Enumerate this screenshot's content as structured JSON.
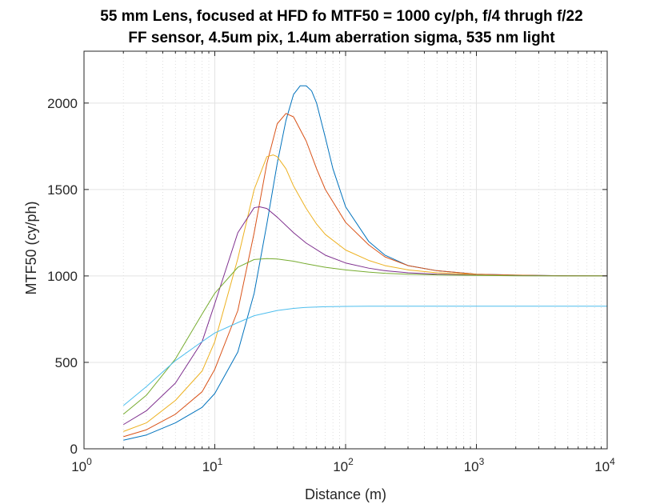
{
  "chart_data": {
    "type": "line",
    "title": "55 mm Lens, focused at HFD fo MTF50 = 1000 cy/ph, f/4 thrugh f/22",
    "subtitle": "FF sensor, 4.5um pix, 1.4um aberration sigma, 535 nm light",
    "xlabel": "Distance (m)",
    "ylabel": "MTF50 (cy/ph)",
    "x_scale": "log",
    "xlim": [
      1,
      10000
    ],
    "ylim": [
      0,
      2300
    ],
    "x_ticks": [
      {
        "base": "10",
        "exp": "0",
        "value": 1
      },
      {
        "base": "10",
        "exp": "1",
        "value": 10
      },
      {
        "base": "10",
        "exp": "2",
        "value": 100
      },
      {
        "base": "10",
        "exp": "3",
        "value": 1000
      },
      {
        "base": "10",
        "exp": "4",
        "value": 10000
      }
    ],
    "y_ticks": [
      "0",
      "500",
      "1000",
      "1500",
      "2000"
    ],
    "grid": true,
    "series": [
      {
        "color": "#0072BD",
        "x": [
          2,
          3,
          5,
          8,
          10,
          15,
          20,
          25,
          30,
          35,
          40,
          45,
          50,
          55,
          60,
          70,
          80,
          100,
          150,
          200,
          300,
          500,
          1000,
          2000,
          5000,
          10000
        ],
        "y": [
          50,
          80,
          150,
          240,
          320,
          560,
          900,
          1300,
          1650,
          1900,
          2050,
          2100,
          2100,
          2070,
          2000,
          1800,
          1620,
          1400,
          1200,
          1120,
          1060,
          1030,
          1010,
          1005,
          1001,
          1000
        ]
      },
      {
        "color": "#D95319",
        "x": [
          2,
          3,
          5,
          8,
          10,
          15,
          20,
          25,
          30,
          35,
          40,
          50,
          60,
          70,
          100,
          150,
          200,
          300,
          500,
          1000,
          2000,
          5000,
          10000
        ],
        "y": [
          70,
          110,
          200,
          330,
          460,
          800,
          1250,
          1650,
          1880,
          1940,
          1920,
          1780,
          1620,
          1500,
          1310,
          1180,
          1110,
          1060,
          1030,
          1010,
          1005,
          1001,
          1000
        ]
      },
      {
        "color": "#EDB120",
        "x": [
          2,
          3,
          5,
          8,
          10,
          15,
          20,
          25,
          28,
          30,
          35,
          40,
          50,
          60,
          70,
          100,
          150,
          200,
          300,
          500,
          1000,
          2000,
          5000,
          10000
        ],
        "y": [
          100,
          150,
          280,
          450,
          620,
          1100,
          1500,
          1690,
          1700,
          1690,
          1620,
          1520,
          1390,
          1300,
          1240,
          1150,
          1090,
          1060,
          1035,
          1018,
          1008,
          1003,
          1001,
          1000
        ]
      },
      {
        "color": "#7E2F8E",
        "x": [
          2,
          3,
          5,
          8,
          10,
          15,
          20,
          22,
          25,
          30,
          40,
          50,
          70,
          100,
          150,
          200,
          300,
          500,
          1000,
          2000,
          5000,
          10000
        ],
        "y": [
          140,
          220,
          380,
          620,
          840,
          1250,
          1395,
          1400,
          1390,
          1340,
          1250,
          1190,
          1120,
          1075,
          1045,
          1030,
          1018,
          1010,
          1005,
          1002,
          1001,
          1000
        ]
      },
      {
        "color": "#77AC30",
        "x": [
          2,
          3,
          5,
          8,
          10,
          15,
          20,
          25,
          30,
          40,
          50,
          70,
          100,
          150,
          200,
          300,
          500,
          1000,
          2000,
          5000,
          10000
        ],
        "y": [
          200,
          310,
          520,
          780,
          900,
          1050,
          1095,
          1100,
          1098,
          1085,
          1070,
          1050,
          1035,
          1022,
          1015,
          1010,
          1006,
          1003,
          1001,
          1000,
          1000
        ]
      },
      {
        "color": "#4DBEEE",
        "x": [
          2,
          3,
          5,
          8,
          10,
          15,
          20,
          30,
          40,
          50,
          70,
          100,
          150,
          200,
          500,
          1000,
          2000,
          5000,
          10000
        ],
        "y": [
          250,
          360,
          510,
          620,
          670,
          730,
          770,
          800,
          812,
          818,
          822,
          824,
          825,
          825,
          825,
          825,
          825,
          825,
          825
        ]
      }
    ]
  }
}
